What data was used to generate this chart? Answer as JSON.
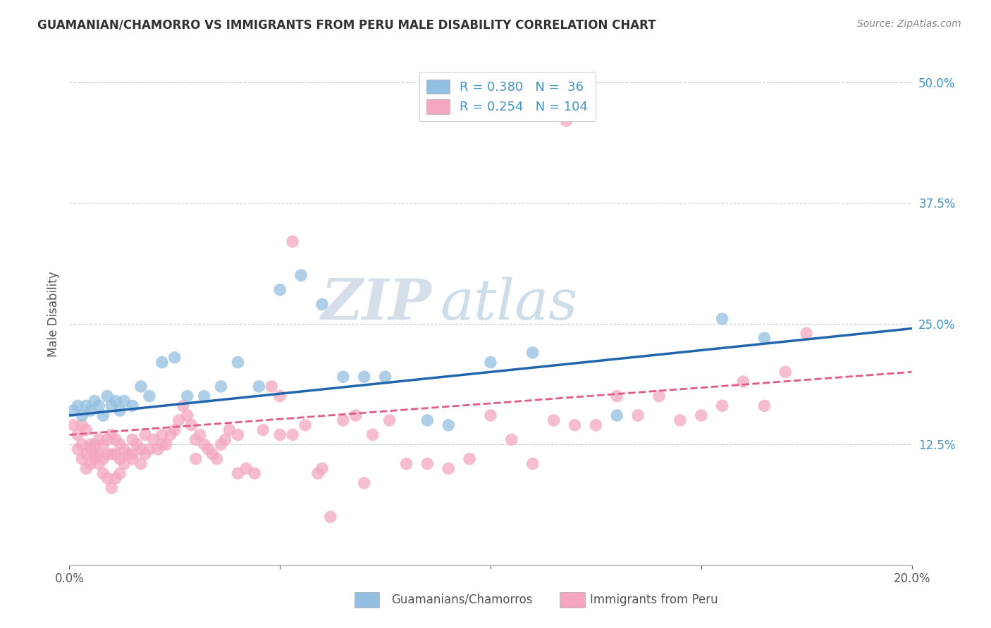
{
  "title": "GUAMANIAN/CHAMORRO VS IMMIGRANTS FROM PERU MALE DISABILITY CORRELATION CHART",
  "source": "Source: ZipAtlas.com",
  "ylabel": "Male Disability",
  "yticks": [
    "12.5%",
    "25.0%",
    "37.5%",
    "50.0%"
  ],
  "ytick_values": [
    0.125,
    0.25,
    0.375,
    0.5
  ],
  "xlim": [
    0.0,
    0.2
  ],
  "ylim": [
    0.0,
    0.52
  ],
  "color_blue": "#93bfe0",
  "color_pink": "#f4a7be",
  "color_blue_line": "#2166ac",
  "color_pink_line": "#e05a8a",
  "color_blue_text": "#4393c3",
  "watermark_zip": "ZIP",
  "watermark_atlas": "atlas",
  "gua_x": [
    0.001,
    0.002,
    0.003,
    0.004,
    0.005,
    0.006,
    0.007,
    0.008,
    0.009,
    0.01,
    0.011,
    0.012,
    0.013,
    0.015,
    0.017,
    0.019,
    0.022,
    0.025,
    0.028,
    0.032,
    0.036,
    0.04,
    0.045,
    0.05,
    0.055,
    0.06,
    0.065,
    0.07,
    0.075,
    0.085,
    0.09,
    0.1,
    0.11,
    0.13,
    0.155,
    0.165
  ],
  "gua_y": [
    0.16,
    0.165,
    0.155,
    0.165,
    0.16,
    0.17,
    0.165,
    0.155,
    0.175,
    0.165,
    0.17,
    0.16,
    0.17,
    0.165,
    0.185,
    0.175,
    0.21,
    0.215,
    0.175,
    0.175,
    0.185,
    0.21,
    0.185,
    0.285,
    0.3,
    0.27,
    0.195,
    0.195,
    0.195,
    0.15,
    0.145,
    0.21,
    0.22,
    0.155,
    0.255,
    0.235
  ],
  "peru_x": [
    0.001,
    0.002,
    0.002,
    0.003,
    0.003,
    0.004,
    0.004,
    0.005,
    0.005,
    0.006,
    0.006,
    0.007,
    0.007,
    0.008,
    0.008,
    0.009,
    0.009,
    0.01,
    0.01,
    0.011,
    0.011,
    0.012,
    0.012,
    0.013,
    0.013,
    0.014,
    0.015,
    0.015,
    0.016,
    0.017,
    0.017,
    0.018,
    0.019,
    0.02,
    0.021,
    0.022,
    0.023,
    0.024,
    0.025,
    0.026,
    0.027,
    0.028,
    0.029,
    0.03,
    0.031,
    0.032,
    0.033,
    0.034,
    0.035,
    0.036,
    0.037,
    0.038,
    0.04,
    0.042,
    0.044,
    0.046,
    0.048,
    0.05,
    0.053,
    0.056,
    0.059,
    0.062,
    0.065,
    0.068,
    0.072,
    0.076,
    0.08,
    0.085,
    0.09,
    0.095,
    0.1,
    0.105,
    0.11,
    0.115,
    0.12,
    0.125,
    0.13,
    0.135,
    0.14,
    0.145,
    0.15,
    0.155,
    0.16,
    0.165,
    0.17,
    0.175,
    0.003,
    0.004,
    0.005,
    0.006,
    0.007,
    0.008,
    0.009,
    0.01,
    0.011,
    0.012,
    0.015,
    0.018,
    0.022,
    0.03,
    0.04,
    0.05,
    0.06,
    0.07
  ],
  "peru_y": [
    0.145,
    0.135,
    0.12,
    0.125,
    0.11,
    0.115,
    0.1,
    0.12,
    0.105,
    0.125,
    0.11,
    0.13,
    0.115,
    0.125,
    0.11,
    0.13,
    0.115,
    0.135,
    0.115,
    0.13,
    0.115,
    0.125,
    0.11,
    0.12,
    0.105,
    0.115,
    0.13,
    0.115,
    0.125,
    0.12,
    0.105,
    0.135,
    0.12,
    0.13,
    0.12,
    0.135,
    0.125,
    0.135,
    0.14,
    0.15,
    0.165,
    0.155,
    0.145,
    0.13,
    0.135,
    0.125,
    0.12,
    0.115,
    0.11,
    0.125,
    0.13,
    0.14,
    0.135,
    0.1,
    0.095,
    0.14,
    0.185,
    0.175,
    0.135,
    0.145,
    0.095,
    0.05,
    0.15,
    0.155,
    0.135,
    0.15,
    0.105,
    0.105,
    0.1,
    0.11,
    0.155,
    0.13,
    0.105,
    0.15,
    0.145,
    0.145,
    0.175,
    0.155,
    0.175,
    0.15,
    0.155,
    0.165,
    0.19,
    0.165,
    0.2,
    0.24,
    0.145,
    0.14,
    0.125,
    0.115,
    0.105,
    0.095,
    0.09,
    0.08,
    0.09,
    0.095,
    0.11,
    0.115,
    0.125,
    0.11,
    0.095,
    0.135,
    0.1,
    0.085
  ],
  "peru_outlier_x": [
    0.118
  ],
  "peru_outlier_y": [
    0.46
  ],
  "peru_outlier2_x": [
    0.053
  ],
  "peru_outlier2_y": [
    0.335
  ],
  "gua_line_x": [
    0.0,
    0.2
  ],
  "gua_line_y": [
    0.155,
    0.245
  ],
  "peru_line_x": [
    0.0,
    0.2
  ],
  "peru_line_y": [
    0.135,
    0.2
  ]
}
